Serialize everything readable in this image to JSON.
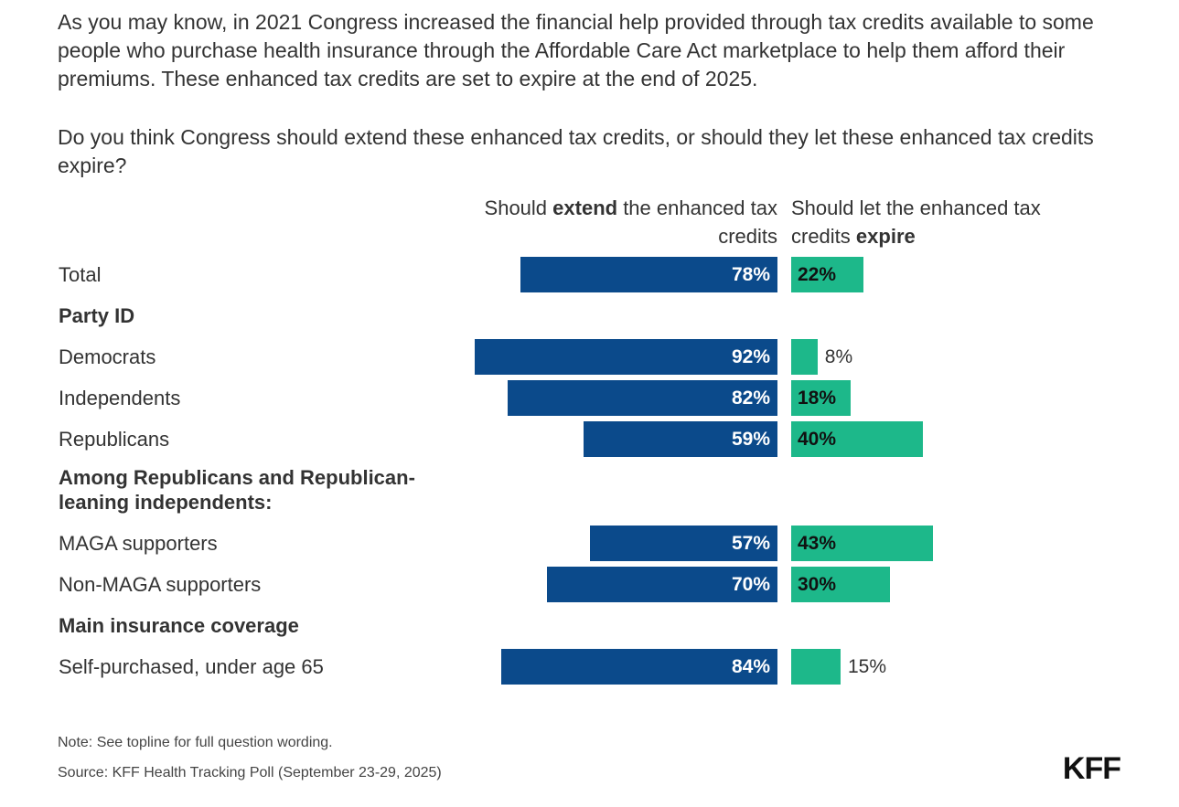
{
  "intro": {
    "paragraph1": "As you may know, in 2021 Congress increased the financial help provided through tax credits available to some people who purchase health insurance through the Affordable Care Act marketplace to help them afford their premiums. These enhanced tax credits are set to expire at the end of 2025.",
    "paragraph2": "Do you think Congress should extend these enhanced tax credits, or should they let these enhanced tax credits expire?"
  },
  "chart_data": {
    "type": "bar",
    "orientation": "horizontal-diverging",
    "series": [
      {
        "name": "Should extend the enhanced tax credits",
        "name_pre": "Should ",
        "name_bold": "extend",
        "name_post": " the enhanced tax credits",
        "color": "#0b4a8b"
      },
      {
        "name": "Should let the enhanced tax credits expire",
        "name_pre": "Should let the enhanced tax credits ",
        "name_bold": "expire",
        "name_post": "",
        "color": "#1db88a"
      }
    ],
    "rows": [
      {
        "label": "Total",
        "type": "data",
        "extend": 78,
        "expire": 22
      },
      {
        "label": "Party ID",
        "type": "group"
      },
      {
        "label": "Democrats",
        "type": "data",
        "extend": 92,
        "expire": 8
      },
      {
        "label": "Independents",
        "type": "data",
        "extend": 82,
        "expire": 18
      },
      {
        "label": "Republicans",
        "type": "data",
        "extend": 59,
        "expire": 40
      },
      {
        "label": "Among Republicans and Republican-leaning independents:",
        "type": "group2"
      },
      {
        "label": "MAGA supporters",
        "type": "data",
        "extend": 57,
        "expire": 43
      },
      {
        "label": "Non-MAGA supporters",
        "type": "data",
        "extend": 70,
        "expire": 30
      },
      {
        "label": "Main insurance coverage",
        "type": "group"
      },
      {
        "label": "Self-purchased, under age 65",
        "type": "data",
        "extend": 84,
        "expire": 15
      }
    ],
    "unit": "%"
  },
  "footer": {
    "note": "Note: See topline for full question wording.",
    "source": "Source: KFF Health Tracking Poll (September 23-29, 2025)",
    "logo": "KFF"
  }
}
